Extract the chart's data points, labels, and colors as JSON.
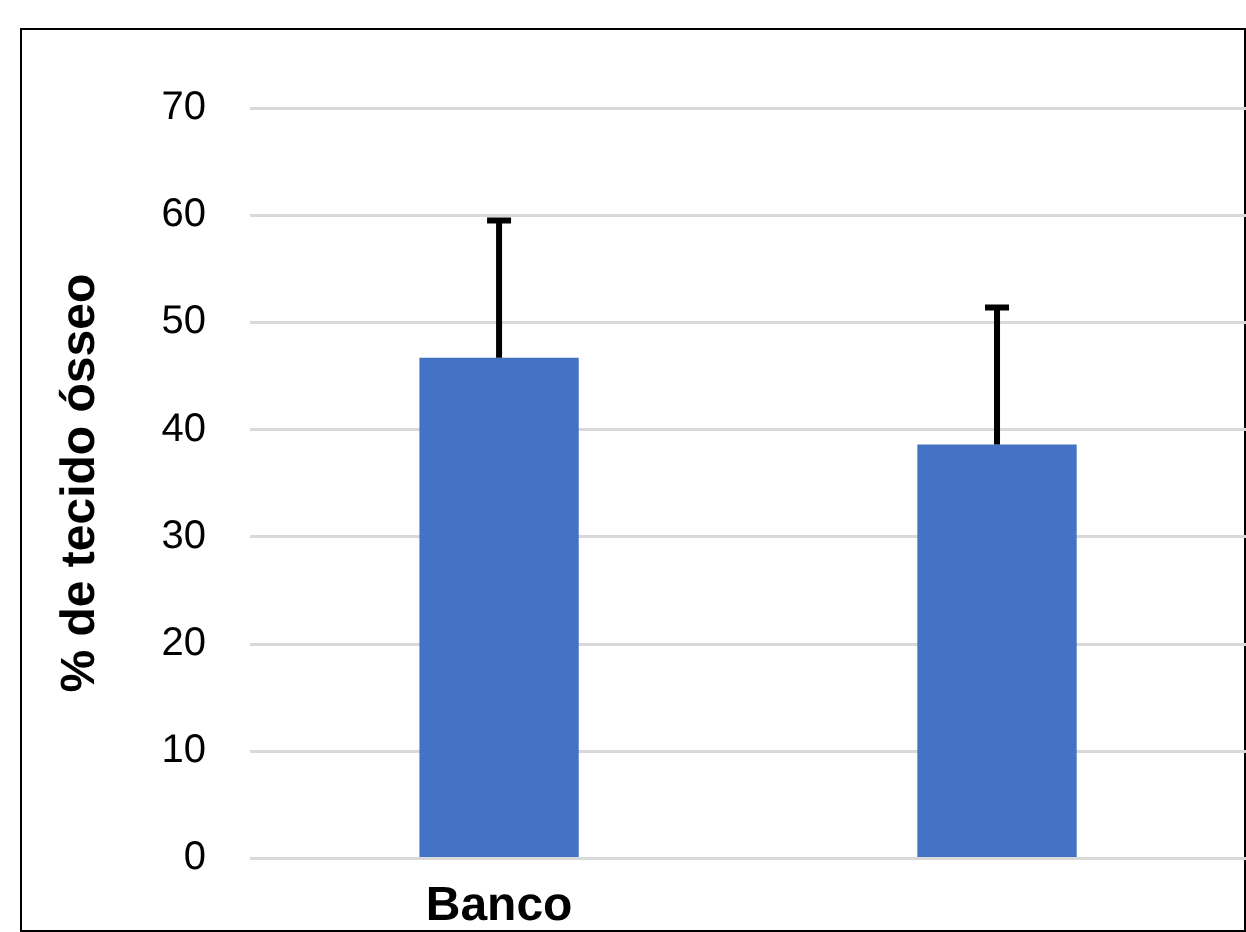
{
  "chart_data": {
    "type": "bar",
    "ylabel": "% de tecido ósseo",
    "categories": [
      "Banco",
      null
    ],
    "values": [
      46.7,
      38.6
    ],
    "color": "#4472c4",
    "errors": [
      [
        46.7,
        59.5
      ],
      [
        38.6,
        51.4
      ]
    ],
    "ylim": [
      0,
      70
    ],
    "yticks": [
      0,
      10,
      20,
      30,
      40,
      50,
      60,
      70
    ],
    "grid": "y",
    "legend": false
  }
}
